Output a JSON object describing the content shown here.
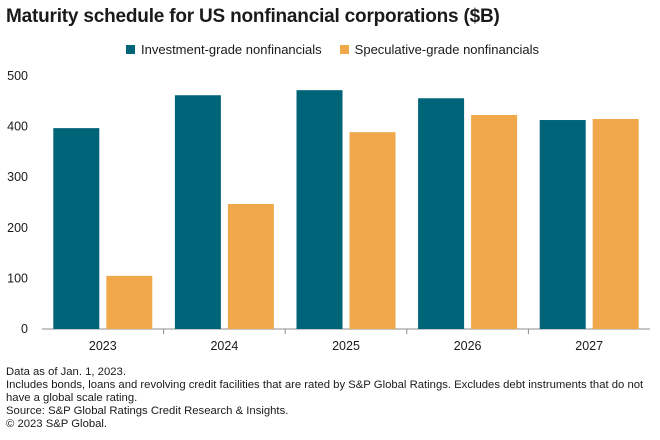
{
  "title": "Maturity schedule for US nonfinancial corporations ($B)",
  "chart_data": {
    "type": "bar",
    "categories": [
      "2023",
      "2024",
      "2025",
      "2026",
      "2027"
    ],
    "series": [
      {
        "name": "Investment-grade nonfinancials",
        "values": [
          397,
          462,
          472,
          456,
          413
        ],
        "color": "#006479"
      },
      {
        "name": "Speculative-grade nonfinancials",
        "values": [
          105,
          247,
          389,
          423,
          415
        ],
        "color": "#f0a84b"
      }
    ],
    "ylim": [
      0,
      500
    ],
    "yticks": [
      "0",
      "100",
      "200",
      "300",
      "400",
      "500"
    ],
    "grid": false,
    "legend": "top"
  },
  "notes": [
    "Data as of Jan. 1, 2023.",
    "Includes bonds, loans and revolving credit facilities that are rated by S&P Global Ratings. Excludes debt instruments that do not have a global scale rating.",
    "Source: S&P Global Ratings Credit Research & Insights.",
    "© 2023 S&P Global."
  ]
}
